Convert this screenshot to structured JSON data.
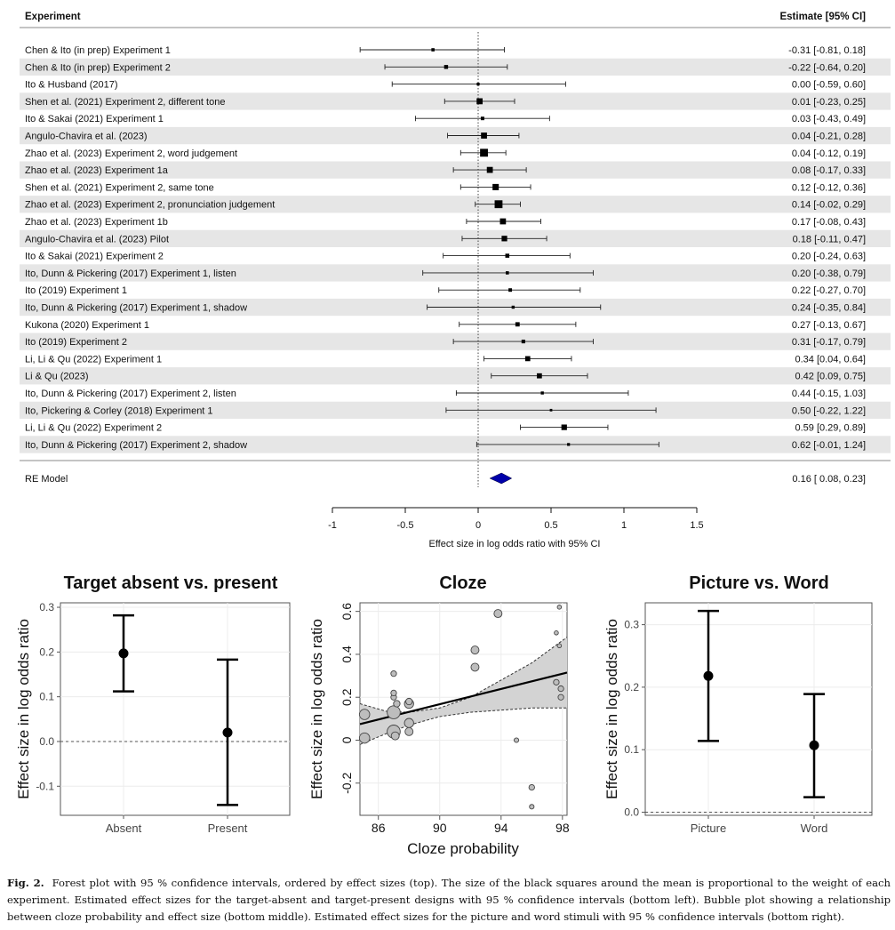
{
  "chart_data": [
    {
      "type": "forest",
      "header_left": "Experiment",
      "header_right": "Estimate [95% CI]",
      "studies": [
        {
          "label": "Chen & Ito (in prep) Experiment 1",
          "estimate": -0.31,
          "lower": -0.81,
          "upper": 0.18,
          "ci_text": "-0.31 [-0.81, 0.18]",
          "weight": 1
        },
        {
          "label": "Chen & Ito (in prep) Experiment 2",
          "estimate": -0.22,
          "lower": -0.64,
          "upper": 0.2,
          "ci_text": "-0.22 [-0.64, 0.20]",
          "weight": 1.5
        },
        {
          "label": "Ito & Husband (2017)",
          "estimate": 0.0,
          "lower": -0.59,
          "upper": 0.6,
          "ci_text": "0.00 [-0.59, 0.60]",
          "weight": 0.8
        },
        {
          "label": "Shen et al. (2021) Experiment 2, different tone",
          "estimate": 0.01,
          "lower": -0.23,
          "upper": 0.25,
          "ci_text": "0.01 [-0.23, 0.25]",
          "weight": 3.5
        },
        {
          "label": "Ito & Sakai (2021) Experiment 1",
          "estimate": 0.03,
          "lower": -0.43,
          "upper": 0.49,
          "ci_text": "0.03 [-0.43, 0.49]",
          "weight": 1.2
        },
        {
          "label": "Angulo-Chavira et al. (2023)",
          "estimate": 0.04,
          "lower": -0.21,
          "upper": 0.28,
          "ci_text": "0.04 [-0.21, 0.28]",
          "weight": 3.5
        },
        {
          "label": "Zhao et al. (2023) Experiment 2, word judgement",
          "estimate": 0.04,
          "lower": -0.12,
          "upper": 0.19,
          "ci_text": "0.04 [-0.12, 0.19]",
          "weight": 6
        },
        {
          "label": "Zhao et al. (2023) Experiment 1a",
          "estimate": 0.08,
          "lower": -0.17,
          "upper": 0.33,
          "ci_text": "0.08 [-0.17, 0.33]",
          "weight": 3.5
        },
        {
          "label": "Shen et al. (2021) Experiment 2, same tone",
          "estimate": 0.12,
          "lower": -0.12,
          "upper": 0.36,
          "ci_text": "0.12 [-0.12, 0.36]",
          "weight": 3.8
        },
        {
          "label": "Zhao et al. (2023) Experiment 2, pronunciation judgement",
          "estimate": 0.14,
          "lower": -0.02,
          "upper": 0.29,
          "ci_text": "0.14 [-0.02, 0.29]",
          "weight": 6
        },
        {
          "label": "Zhao et al. (2023) Experiment 1b",
          "estimate": 0.17,
          "lower": -0.08,
          "upper": 0.43,
          "ci_text": "0.17 [-0.08, 0.43]",
          "weight": 3.5
        },
        {
          "label": "Angulo-Chavira et al. (2023) Pilot",
          "estimate": 0.18,
          "lower": -0.11,
          "upper": 0.47,
          "ci_text": "0.18 [-0.11, 0.47]",
          "weight": 3
        },
        {
          "label": "Ito & Sakai (2021) Experiment 2",
          "estimate": 0.2,
          "lower": -0.24,
          "upper": 0.63,
          "ci_text": "0.20 [-0.24, 0.63]",
          "weight": 1.6
        },
        {
          "label": "Ito, Dunn & Pickering (2017) Experiment 1, listen",
          "estimate": 0.2,
          "lower": -0.38,
          "upper": 0.79,
          "ci_text": "0.20 [-0.38, 0.79]",
          "weight": 1
        },
        {
          "label": "Ito (2019) Experiment 1",
          "estimate": 0.22,
          "lower": -0.27,
          "upper": 0.7,
          "ci_text": "0.22 [-0.27, 0.70]",
          "weight": 1.2
        },
        {
          "label": "Ito, Dunn & Pickering (2017) Experiment 1, shadow",
          "estimate": 0.24,
          "lower": -0.35,
          "upper": 0.84,
          "ci_text": "0.24 [-0.35, 0.84]",
          "weight": 0.9
        },
        {
          "label": "Kukona (2020) Experiment 1",
          "estimate": 0.27,
          "lower": -0.13,
          "upper": 0.67,
          "ci_text": "0.27 [-0.13, 0.67]",
          "weight": 1.8
        },
        {
          "label": "Ito (2019) Experiment 2",
          "estimate": 0.31,
          "lower": -0.17,
          "upper": 0.79,
          "ci_text": "0.31 [-0.17, 0.79]",
          "weight": 1.3
        },
        {
          "label": "Li, Li & Qu (2022) Experiment 1",
          "estimate": 0.34,
          "lower": 0.04,
          "upper": 0.64,
          "ci_text": "0.34 [0.04, 0.64]",
          "weight": 2.5
        },
        {
          "label": "Li & Qu (2023)",
          "estimate": 0.42,
          "lower": 0.09,
          "upper": 0.75,
          "ci_text": "0.42 [0.09, 0.75]",
          "weight": 2.5
        },
        {
          "label": "Ito, Dunn & Pickering (2017) Experiment 2, listen",
          "estimate": 0.44,
          "lower": -0.15,
          "upper": 1.03,
          "ci_text": "0.44 [-0.15, 1.03]",
          "weight": 0.9
        },
        {
          "label": "Ito, Pickering & Corley (2018) Experiment 1",
          "estimate": 0.5,
          "lower": -0.22,
          "upper": 1.22,
          "ci_text": "0.50 [-0.22, 1.22]",
          "weight": 0.6
        },
        {
          "label": "Li, Li & Qu (2022) Experiment 2",
          "estimate": 0.59,
          "lower": 0.29,
          "upper": 0.89,
          "ci_text": "0.59 [0.29, 0.89]",
          "weight": 3
        },
        {
          "label": "Ito, Dunn & Pickering (2017) Experiment 2, shadow",
          "estimate": 0.62,
          "lower": -0.01,
          "upper": 1.24,
          "ci_text": "0.62 [-0.01, 1.24]",
          "weight": 0.8
        }
      ],
      "summary": {
        "label": "RE Model",
        "estimate": 0.16,
        "lower": 0.08,
        "upper": 0.23,
        "ci_text": "0.16 [ 0.08, 0.23]",
        "color": "#0000aa"
      },
      "x_ticks": [
        -1,
        -0.5,
        0,
        0.5,
        1,
        1.5
      ],
      "x_tick_labels": [
        "-1",
        "-0.5",
        "0",
        "0.5",
        "1",
        "1.5"
      ],
      "xlabel": "Effect size in log odds ratio with 95% CI",
      "xlim": [
        -1,
        1.5
      ],
      "reference_line": 0,
      "row_stripes": true
    },
    {
      "type": "errorbar",
      "title": "Target absent vs. present",
      "ylabel": "Effect size in log odds ratio",
      "categories": [
        "Absent",
        "Present"
      ],
      "values": [
        0.197,
        0.02
      ],
      "lower": [
        0.112,
        -0.142
      ],
      "upper": [
        0.282,
        0.183
      ],
      "ylim": [
        -0.165,
        0.31
      ],
      "y_ticks": [
        -0.1,
        0.0,
        0.1,
        0.2,
        0.3
      ],
      "y_tick_labels": [
        "-0.1",
        "0.0",
        "0.1",
        "0.2",
        "0.3"
      ],
      "reference_line": 0,
      "grid": true
    },
    {
      "type": "scatter",
      "title": "Cloze",
      "xlabel": "Cloze probability",
      "ylabel": "Effect size in log odds ratio",
      "xlim": [
        84.8,
        98.3
      ],
      "ylim": [
        -0.35,
        0.64
      ],
      "x_ticks": [
        86,
        90,
        94,
        98
      ],
      "x_tick_labels": [
        "86",
        "90",
        "94",
        "98"
      ],
      "y_ticks": [
        -0.2,
        0,
        0.2,
        0.4,
        0.6
      ],
      "y_tick_labels": [
        "-0.2",
        "0",
        "0.2",
        "0.4",
        "0.6"
      ],
      "regression": {
        "x": [
          84.8,
          98.3
        ],
        "y": [
          0.075,
          0.315
        ]
      },
      "confidence_band": {
        "x": [
          84.8,
          86.5,
          88,
          90,
          92,
          94,
          96,
          98.3
        ],
        "lower": [
          -0.02,
          0.03,
          0.07,
          0.11,
          0.13,
          0.14,
          0.15,
          0.15
        ],
        "upper": [
          0.17,
          0.135,
          0.13,
          0.15,
          0.2,
          0.28,
          0.36,
          0.48
        ]
      },
      "points": [
        {
          "x": 85.1,
          "y": 0.12,
          "size": 5
        },
        {
          "x": 85.1,
          "y": 0.01,
          "size": 5
        },
        {
          "x": 87.0,
          "y": 0.13,
          "size": 8
        },
        {
          "x": 87.0,
          "y": 0.04,
          "size": 8
        },
        {
          "x": 87.0,
          "y": 0.2,
          "size": 1.5
        },
        {
          "x": 87.0,
          "y": 0.22,
          "size": 1.5
        },
        {
          "x": 87.0,
          "y": 0.31,
          "size": 1.5
        },
        {
          "x": 87.1,
          "y": 0.02,
          "size": 3
        },
        {
          "x": 87.2,
          "y": 0.17,
          "size": 2
        },
        {
          "x": 88.0,
          "y": 0.17,
          "size": 4
        },
        {
          "x": 88.0,
          "y": 0.18,
          "size": 2
        },
        {
          "x": 88.0,
          "y": 0.08,
          "size": 4
        },
        {
          "x": 88.0,
          "y": 0.04,
          "size": 3
        },
        {
          "x": 92.3,
          "y": 0.42,
          "size": 3
        },
        {
          "x": 92.3,
          "y": 0.34,
          "size": 3
        },
        {
          "x": 93.8,
          "y": 0.59,
          "size": 3
        },
        {
          "x": 95.0,
          "y": 0.0,
          "size": 1
        },
        {
          "x": 96.0,
          "y": -0.22,
          "size": 1.5
        },
        {
          "x": 96.0,
          "y": -0.31,
          "size": 1
        },
        {
          "x": 97.6,
          "y": 0.5,
          "size": 0.8
        },
        {
          "x": 97.6,
          "y": 0.27,
          "size": 1.5
        },
        {
          "x": 97.8,
          "y": 0.62,
          "size": 0.8
        },
        {
          "x": 97.8,
          "y": 0.44,
          "size": 0.8
        },
        {
          "x": 97.9,
          "y": 0.24,
          "size": 1.5
        },
        {
          "x": 97.9,
          "y": 0.2,
          "size": 1.5
        }
      ],
      "grid": true
    },
    {
      "type": "errorbar",
      "title": "Picture vs. Word",
      "ylabel": "Effect size in log odds ratio",
      "categories": [
        "Picture",
        "Word"
      ],
      "values": [
        0.218,
        0.107
      ],
      "lower": [
        0.114,
        0.024
      ],
      "upper": [
        0.322,
        0.189
      ],
      "ylim": [
        -0.005,
        0.335
      ],
      "y_ticks": [
        0.0,
        0.1,
        0.2,
        0.3
      ],
      "y_tick_labels": [
        "0.0",
        "0.1",
        "0.2",
        "0.3"
      ],
      "reference_line": 0,
      "grid": true
    }
  ],
  "caption": {
    "label": "Fig. 2.",
    "text": "Forest plot with 95 % confidence intervals, ordered by effect sizes (top). The size of the black squares around the mean is proportional to the weight of each experiment. Estimated effect sizes for the target-absent and target-present designs with 95 % confidence intervals (bottom left). Bubble plot showing a relationship between cloze probability and effect size (bottom middle). Estimated effect sizes for the picture and word stimuli with 95 % confidence intervals (bottom right)."
  }
}
